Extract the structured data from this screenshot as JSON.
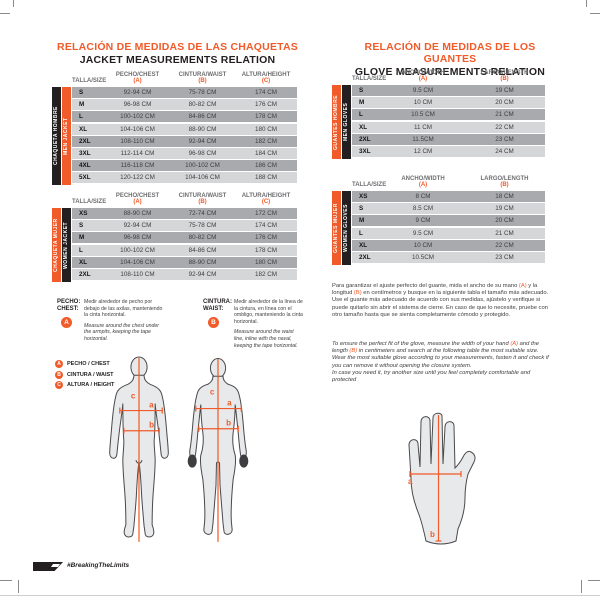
{
  "jackets": {
    "title_es": "RELACIÓN DE MEDIDAS DE LAS CHAQUETAS",
    "title_en": "JACKET MEASUREMENTS RELATION",
    "headers": [
      "TALLA/SIZE",
      "PECHO/CHEST (A)",
      "CINTURA/WAIST (B)",
      "ALTURA/HEIGHT (C)"
    ],
    "men": {
      "side_label_es": "CHAQUETA HOMBRE",
      "side_label_en": "MEN JACKET",
      "rows": [
        [
          "S",
          "92-94 CM",
          "75-78 CM",
          "174 CM"
        ],
        [
          "M",
          "96-98 CM",
          "80-82 CM",
          "176 CM"
        ],
        [
          "L",
          "100-102 CM",
          "84-86 CM",
          "178 CM"
        ],
        [
          "XL",
          "104-106 CM",
          "88-90 CM",
          "180 CM"
        ],
        [
          "2XL",
          "108-110 CM",
          "92-94 CM",
          "182 CM"
        ],
        [
          "3XL",
          "112-114 CM",
          "96-98 CM",
          "184 CM"
        ],
        [
          "4XL",
          "116-118 CM",
          "100-102 CM",
          "186 CM"
        ],
        [
          "5XL",
          "120-122 CM",
          "104-106 CM",
          "188 CM"
        ]
      ]
    },
    "women": {
      "side_label_es": "CHAQUETA MUJER",
      "side_label_en": "WOMEN JACKET",
      "rows": [
        [
          "XS",
          "88-90 CM",
          "72-74 CM",
          "172 CM"
        ],
        [
          "S",
          "92-94 CM",
          "75-78 CM",
          "174 CM"
        ],
        [
          "M",
          "96-98 CM",
          "80-82 CM",
          "176 CM"
        ],
        [
          "L",
          "100-102 CM",
          "84-86 CM",
          "178 CM"
        ],
        [
          "XL",
          "104-106 CM",
          "88-90 CM",
          "180 CM"
        ],
        [
          "2XL",
          "108-110 CM",
          "92-94 CM",
          "182 CM"
        ]
      ]
    }
  },
  "gloves": {
    "title_es": "RELACIÓN DE MEDIDAS DE LOS GUANTES",
    "title_en": "GLOVE MEASUREMENTS RELATION",
    "headers": [
      "TALLA/SIZE",
      "ANCHO/WIDTH (A)",
      "LARGO/LENGTH (B)"
    ],
    "men": {
      "side_label_es": "GUANTES HOMBRE",
      "side_label_en": "MEN GLOVES",
      "rows": [
        [
          "S",
          "9.5 CM",
          "19 CM"
        ],
        [
          "M",
          "10 CM",
          "20 CM"
        ],
        [
          "L",
          "10.5 CM",
          "21 CM"
        ],
        [
          "XL",
          "11 CM",
          "22 CM"
        ],
        [
          "2XL",
          "11.5CM",
          "23 CM"
        ],
        [
          "3XL",
          "12 CM",
          "24 CM"
        ]
      ]
    },
    "women": {
      "side_label_es": "GUANTES MUJER",
      "side_label_en": "WOMEN GLOVES",
      "rows": [
        [
          "XS",
          "8 CM",
          "18 CM"
        ],
        [
          "S",
          "8.5 CM",
          "19 CM"
        ],
        [
          "M",
          "9 CM",
          "20 CM"
        ],
        [
          "L",
          "9.5 CM",
          "21 CM"
        ],
        [
          "XL",
          "10 CM",
          "22 CM"
        ],
        [
          "2XL",
          "10.5CM",
          "23 CM"
        ]
      ]
    },
    "paragraph_es_1": "Para garantizar el ajuste perfecto del guante, mida el ancho de su mano (A) y la longitud (B) en centímetros y busque en la siguiente tabla el tamaño más adecuado.",
    "paragraph_es_2": "Use el guante más adecuado de acuerdo con sus medidas, ajústelo y verifique si puede quitarlo sin abrir el sistema de cierre. En caso de que lo necesite, pruebe con otro tamaño hasta que se sienta completamente cómodo y protegido.",
    "paragraph_en_1": "To ensure the perfect fit of the glove, measure the width of your hand (A) and the length (B) in centimeters and search at the following table the most suitable size.  Wear the most suitable glove according to your measurements, fasten it and check if you can remove it without opening the closure system.",
    "paragraph_en_2": "In case you need it, try another size until you feel completely comfortable and protected"
  },
  "instructions": {
    "chest": {
      "label_es": "PECHO:",
      "label_en": "CHEST:",
      "marker": "A",
      "text_es": "Medir alrededor de pecho por debajo de las axilas, manteniendo la cinta horizontal.",
      "text_en": "Measure around the chest under the armpits, keeping the tape horizontal."
    },
    "waist": {
      "label_es": "CINTURA:",
      "label_en": "WAIST:",
      "marker": "B",
      "text_es": "Medir alrededor de la línea de la cintura, en línea con el ombligo, manteniendo la cinta horizontal.",
      "text_en": "Measure around the waist line, inline with the naval, keeping the tape horizontal."
    }
  },
  "legend": {
    "items": [
      {
        "marker": "A",
        "label": "PECHO / CHEST"
      },
      {
        "marker": "B",
        "label": "CINTURA / WAIST"
      },
      {
        "marker": "C",
        "label": "ALTURA / HEIGHT"
      }
    ]
  },
  "diagram_labels": {
    "a": "a",
    "b": "b",
    "c": "c"
  },
  "footer": {
    "hashtag": "#BreakingTheLimits"
  },
  "colors": {
    "accent": "#F15A29",
    "ink": "#231F20",
    "row_dark": "#A8AAAD",
    "row_light": "#D5D6D8"
  }
}
